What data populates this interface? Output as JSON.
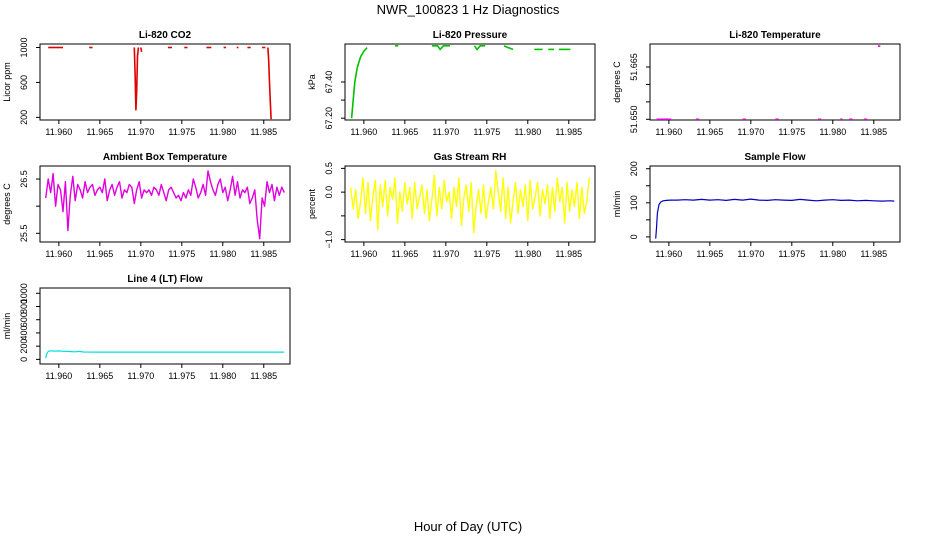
{
  "figure": {
    "title": "NWR_100823  1 Hz Diagnostics",
    "xlabel": "Hour of Day (UTC)"
  },
  "colors": {
    "co2": "#e00000",
    "pressure": "#00c000",
    "temperature": "#e000e0",
    "box_temp": "#e000e0",
    "rh": "#ffff00",
    "sample_flow": "#0000c0",
    "line4_flow": "#00e0e0"
  },
  "chart_data": [
    {
      "id": "co2",
      "type": "line",
      "title": "Li-820 CO2",
      "ylabel": "Licor ppm",
      "xlim": [
        11.9577,
        11.9882
      ],
      "ylim": [
        170,
        1040
      ],
      "xticks": [
        11.96,
        11.965,
        11.97,
        11.975,
        11.98,
        11.985
      ],
      "xtick_labels": [
        "11.960",
        "11.965",
        "11.970",
        "11.975",
        "11.980",
        "11.985"
      ],
      "yticks": [
        200,
        600,
        1000
      ],
      "ytick_labels": [
        "200",
        "600",
        "1000"
      ],
      "segments": [
        [
          [
            11.9587,
            1000
          ],
          [
            11.9605,
            1000
          ]
        ],
        [
          [
            11.9637,
            1000
          ],
          [
            11.9641,
            1000
          ]
        ],
        [
          [
            11.9692,
            1000
          ],
          [
            11.9693,
            700
          ],
          [
            11.9694,
            280
          ],
          [
            11.9695,
            500
          ],
          [
            11.9696,
            900
          ],
          [
            11.9697,
            1000
          ]
        ],
        [
          [
            11.97,
            1000
          ],
          [
            11.9701,
            950
          ]
        ],
        [
          [
            11.9733,
            1000
          ],
          [
            11.9738,
            1000
          ]
        ],
        [
          [
            11.9753,
            1000
          ],
          [
            11.9757,
            1000
          ]
        ],
        [
          [
            11.978,
            1000
          ],
          [
            11.9786,
            1000
          ]
        ],
        [
          [
            11.9801,
            1000
          ],
          [
            11.9804,
            1000
          ]
        ],
        [
          [
            11.9817,
            1000
          ],
          [
            11.9819,
            1000
          ]
        ],
        [
          [
            11.983,
            1000
          ],
          [
            11.9834,
            1000
          ]
        ],
        [
          [
            11.9848,
            1000
          ],
          [
            11.9852,
            1000
          ]
        ],
        [
          [
            11.9855,
            1000
          ],
          [
            11.9856,
            850
          ],
          [
            11.9857,
            600
          ],
          [
            11.9858,
            380
          ],
          [
            11.9859,
            180
          ]
        ]
      ]
    },
    {
      "id": "pressure",
      "type": "line",
      "title": "Li-820 Pressure",
      "ylabel": "kPa",
      "xlim": [
        11.9577,
        11.9882
      ],
      "ylim": [
        67.19,
        67.61
      ],
      "xticks": [
        11.96,
        11.965,
        11.97,
        11.975,
        11.98,
        11.985
      ],
      "xtick_labels": [
        "11.960",
        "11.965",
        "11.970",
        "11.975",
        "11.980",
        "11.985"
      ],
      "yticks": [
        67.2,
        67.3,
        67.4
      ],
      "ytick_labels": [
        "67.20",
        "",
        "67.40"
      ],
      "segments": [
        [
          [
            11.9585,
            67.2
          ],
          [
            11.9587,
            67.3
          ],
          [
            11.9589,
            67.4
          ],
          [
            11.9592,
            67.48
          ],
          [
            11.9596,
            67.54
          ],
          [
            11.96,
            67.57
          ],
          [
            11.9604,
            67.59
          ]
        ],
        [
          [
            11.9638,
            67.6
          ],
          [
            11.9642,
            67.6
          ]
        ],
        [
          [
            11.9683,
            67.6
          ],
          [
            11.969,
            67.6
          ],
          [
            11.9693,
            67.58
          ],
          [
            11.9697,
            67.6
          ],
          [
            11.9705,
            67.6
          ]
        ],
        [
          [
            11.9735,
            67.6
          ],
          [
            11.9738,
            67.58
          ],
          [
            11.9742,
            67.6
          ],
          [
            11.9748,
            67.6
          ]
        ],
        [
          [
            11.9771,
            67.6
          ],
          [
            11.9776,
            67.59
          ],
          [
            11.9782,
            67.58
          ]
        ],
        [
          [
            11.9808,
            67.58
          ],
          [
            11.9818,
            67.58
          ]
        ],
        [
          [
            11.9825,
            67.58
          ],
          [
            11.9832,
            67.58
          ]
        ],
        [
          [
            11.9838,
            67.58
          ],
          [
            11.9852,
            67.58
          ]
        ]
      ]
    },
    {
      "id": "temperature",
      "type": "line",
      "title": "Li-820 Temperature",
      "ylabel": "degrees C",
      "xlim": [
        11.9577,
        11.9882
      ],
      "ylim": [
        51.6498,
        51.6716
      ],
      "xticks": [
        11.96,
        11.965,
        11.97,
        11.975,
        11.98,
        11.985
      ],
      "xtick_labels": [
        "11.960",
        "11.965",
        "11.970",
        "11.975",
        "11.980",
        "11.985"
      ],
      "yticks": [
        51.65,
        51.655,
        51.66,
        51.665
      ],
      "ytick_labels": [
        "51.650",
        "",
        "",
        "51.665"
      ],
      "segments": [
        [
          [
            11.9585,
            51.65
          ],
          [
            11.9603,
            51.65
          ]
        ],
        [
          [
            11.9633,
            51.65
          ],
          [
            11.9637,
            51.65
          ]
        ],
        [
          [
            11.969,
            51.65
          ],
          [
            11.9694,
            51.65
          ]
        ],
        [
          [
            11.973,
            51.65
          ],
          [
            11.9734,
            51.65
          ]
        ],
        [
          [
            11.9782,
            51.65
          ],
          [
            11.9786,
            51.65
          ]
        ],
        [
          [
            11.9809,
            51.65
          ],
          [
            11.9812,
            51.65
          ]
        ],
        [
          [
            11.982,
            51.65
          ],
          [
            11.9824,
            51.65
          ]
        ],
        [
          [
            11.9838,
            51.65
          ],
          [
            11.9842,
            51.65
          ]
        ],
        [
          [
            11.9855,
            51.671
          ],
          [
            11.9858,
            51.671
          ]
        ]
      ]
    },
    {
      "id": "box_temp",
      "type": "line",
      "title": "Ambient Box Temperature",
      "ylabel": "degrees C",
      "xlim": [
        11.9577,
        11.9882
      ],
      "ylim": [
        25.34,
        26.74
      ],
      "xticks": [
        11.96,
        11.965,
        11.97,
        11.975,
        11.98,
        11.985
      ],
      "xtick_labels": [
        "11.960",
        "11.965",
        "11.970",
        "11.975",
        "11.980",
        "11.985"
      ],
      "yticks": [
        25.5,
        26.0,
        26.5
      ],
      "ytick_labels": [
        "25.5",
        "",
        "26.5"
      ],
      "x": [
        11.9584,
        11.9587,
        11.959,
        11.9593,
        11.9596,
        11.9599,
        11.9602,
        11.9605,
        11.9608,
        11.9611,
        11.9614,
        11.9617,
        11.962,
        11.9623,
        11.9626,
        11.9629,
        11.9632,
        11.9635,
        11.9638,
        11.9641,
        11.9644,
        11.9647,
        11.965,
        11.9653,
        11.9656,
        11.9659,
        11.9662,
        11.9665,
        11.9668,
        11.9671,
        11.9674,
        11.9677,
        11.968,
        11.9683,
        11.9686,
        11.9689,
        11.9692,
        11.9695,
        11.9698,
        11.9701,
        11.9704,
        11.9707,
        11.971,
        11.9713,
        11.9716,
        11.9719,
        11.9722,
        11.9725,
        11.9728,
        11.9731,
        11.9734,
        11.9737,
        11.974,
        11.9743,
        11.9746,
        11.9749,
        11.9752,
        11.9755,
        11.9758,
        11.9761,
        11.9764,
        11.9767,
        11.977,
        11.9773,
        11.9776,
        11.9779,
        11.9782,
        11.9785,
        11.9788,
        11.9791,
        11.9794,
        11.9797,
        11.98,
        11.9803,
        11.9806,
        11.9809,
        11.9812,
        11.9815,
        11.9818,
        11.9821,
        11.9824,
        11.9827,
        11.983,
        11.9833,
        11.9836,
        11.9839,
        11.9842,
        11.9845,
        11.9848,
        11.9851,
        11.9854,
        11.9857,
        11.986,
        11.9863,
        11.9866,
        11.9869,
        11.9872,
        11.9875
      ],
      "values": [
        26.15,
        26.5,
        26.25,
        26.6,
        26.0,
        26.4,
        26.3,
        25.9,
        26.45,
        25.55,
        26.2,
        26.55,
        26.1,
        26.4,
        26.3,
        26.15,
        26.45,
        26.25,
        26.35,
        26.4,
        26.2,
        26.3,
        26.35,
        26.25,
        26.5,
        26.1,
        26.3,
        26.4,
        26.2,
        26.35,
        26.45,
        26.15,
        26.3,
        26.25,
        26.4,
        26.35,
        26.05,
        26.3,
        26.45,
        26.15,
        26.3,
        26.25,
        26.3,
        26.2,
        26.35,
        26.3,
        26.2,
        26.4,
        26.25,
        26.1,
        26.3,
        26.35,
        26.25,
        26.15,
        26.2,
        26.1,
        26.25,
        26.15,
        26.3,
        26.2,
        26.5,
        26.35,
        26.15,
        26.25,
        26.4,
        26.2,
        26.65,
        26.45,
        26.3,
        26.2,
        26.4,
        26.5,
        26.25,
        26.35,
        26.1,
        26.3,
        26.55,
        26.2,
        26.45,
        26.15,
        26.3,
        26.25,
        26.35,
        26.05,
        26.15,
        26.3,
        25.75,
        25.4,
        26.15,
        26.0,
        26.45,
        26.25,
        26.4,
        26.1,
        26.35,
        26.2,
        26.35,
        26.25
      ]
    },
    {
      "id": "rh",
      "type": "line",
      "title": "Gas Stream RH",
      "ylabel": "percent",
      "xlim": [
        11.9577,
        11.9882
      ],
      "ylim": [
        -1.05,
        0.55
      ],
      "xticks": [
        11.96,
        11.965,
        11.97,
        11.975,
        11.98,
        11.985
      ],
      "xtick_labels": [
        "11.960",
        "11.965",
        "11.970",
        "11.975",
        "11.980",
        "11.985"
      ],
      "yticks": [
        -1.0,
        -0.5,
        0.0,
        0.5
      ],
      "ytick_labels": [
        "−1.0",
        "",
        "0.0",
        "0.5"
      ],
      "x": [
        11.9584,
        11.9587,
        11.959,
        11.9593,
        11.9596,
        11.9599,
        11.9602,
        11.9605,
        11.9608,
        11.9611,
        11.9614,
        11.9617,
        11.962,
        11.9623,
        11.9626,
        11.9629,
        11.9632,
        11.9635,
        11.9638,
        11.9641,
        11.9644,
        11.9647,
        11.965,
        11.9653,
        11.9656,
        11.9659,
        11.9662,
        11.9665,
        11.9668,
        11.9671,
        11.9674,
        11.9677,
        11.968,
        11.9683,
        11.9686,
        11.9689,
        11.9692,
        11.9695,
        11.9698,
        11.9701,
        11.9704,
        11.9707,
        11.971,
        11.9713,
        11.9716,
        11.9719,
        11.9722,
        11.9725,
        11.9728,
        11.9731,
        11.9734,
        11.9737,
        11.974,
        11.9743,
        11.9746,
        11.9749,
        11.9752,
        11.9755,
        11.9758,
        11.9761,
        11.9764,
        11.9767,
        11.977,
        11.9773,
        11.9776,
        11.9779,
        11.9782,
        11.9785,
        11.9788,
        11.9791,
        11.9794,
        11.9797,
        11.98,
        11.9803,
        11.9806,
        11.9809,
        11.9812,
        11.9815,
        11.9818,
        11.9821,
        11.9824,
        11.9827,
        11.983,
        11.9833,
        11.9836,
        11.9839,
        11.9842,
        11.9845,
        11.9848,
        11.9851,
        11.9854,
        11.9857,
        11.986,
        11.9863,
        11.9866,
        11.9869,
        11.9872,
        11.9875
      ],
      "values": [
        0.1,
        -0.35,
        0.05,
        -0.55,
        -0.2,
        0.3,
        -0.45,
        0.2,
        -0.6,
        -0.1,
        0.25,
        -0.8,
        0.15,
        -0.3,
        0.25,
        -0.5,
        0.1,
        -0.15,
        0.3,
        -0.65,
        0.0,
        -0.4,
        0.2,
        -0.25,
        0.1,
        -0.55,
        0.2,
        -0.35,
        -0.1,
        0.15,
        -0.45,
        0.05,
        -0.6,
        -0.15,
        0.35,
        -0.5,
        0.1,
        -0.35,
        0.25,
        -0.2,
        0.0,
        -0.55,
        0.1,
        -0.3,
        0.3,
        -0.7,
        -0.1,
        0.15,
        -0.4,
        0.2,
        -0.85,
        -0.3,
        0.05,
        -0.45,
        0.15,
        -0.55,
        -0.2,
        0.1,
        -0.35,
        0.45,
        0.0,
        -0.4,
        0.3,
        -0.55,
        0.1,
        -0.65,
        -0.2,
        0.2,
        -0.45,
        0.05,
        -0.3,
        0.15,
        -0.6,
        0.25,
        -0.35,
        -0.1,
        0.2,
        -0.5,
        0.05,
        -0.25,
        0.15,
        -0.55,
        0.1,
        -0.4,
        0.3,
        -0.2,
        0.1,
        -0.65,
        0.2,
        -0.4,
        0.05,
        -0.3,
        0.2,
        -0.55,
        0.1,
        -0.45,
        -0.2,
        0.3
      ]
    },
    {
      "id": "sample_flow",
      "type": "line",
      "title": "Sample Flow",
      "ylabel": "ml/min",
      "xlim": [
        11.9577,
        11.9882
      ],
      "ylim": [
        -15,
        208
      ],
      "xticks": [
        11.96,
        11.965,
        11.97,
        11.975,
        11.98,
        11.985
      ],
      "xtick_labels": [
        "11.960",
        "11.965",
        "11.970",
        "11.975",
        "11.980",
        "11.985"
      ],
      "yticks": [
        0,
        50,
        100,
        150,
        200
      ],
      "ytick_labels": [
        "0",
        "",
        "100",
        "",
        "200"
      ],
      "x": [
        11.9584,
        11.9585,
        11.9586,
        11.9588,
        11.959,
        11.9593,
        11.9597,
        11.9602,
        11.961,
        11.962,
        11.963,
        11.964,
        11.965,
        11.966,
        11.967,
        11.968,
        11.969,
        11.97,
        11.971,
        11.972,
        11.973,
        11.974,
        11.975,
        11.976,
        11.977,
        11.978,
        11.979,
        11.98,
        11.981,
        11.982,
        11.983,
        11.984,
        11.985,
        11.986,
        11.987,
        11.9875
      ],
      "values": [
        -5,
        30,
        70,
        95,
        102,
        106,
        107,
        108,
        108,
        109,
        108,
        110,
        108,
        109,
        107,
        110,
        108,
        111,
        108,
        107,
        109,
        108,
        107,
        110,
        108,
        106,
        108,
        109,
        107,
        108,
        106,
        107,
        106,
        105,
        106,
        105
      ]
    },
    {
      "id": "line4_flow",
      "type": "line",
      "title": "Line 4 (LT) Flow",
      "ylabel": "ml/min",
      "xlim": [
        11.9577,
        11.9882
      ],
      "ylim": [
        -70,
        1080
      ],
      "xticks": [
        11.96,
        11.965,
        11.97,
        11.975,
        11.98,
        11.985
      ],
      "xtick_labels": [
        "11.960",
        "11.965",
        "11.970",
        "11.975",
        "11.980",
        "11.985"
      ],
      "yticks": [
        0,
        200,
        400,
        600,
        800,
        1000
      ],
      "ytick_labels": [
        "0",
        "200",
        "400",
        "600",
        "800",
        "1000"
      ],
      "x": [
        11.9584,
        11.9585,
        11.9587,
        11.959,
        11.9595,
        11.96,
        11.9605,
        11.961,
        11.9615,
        11.962,
        11.9625,
        11.963,
        11.965,
        11.97,
        11.975,
        11.98,
        11.985,
        11.9875
      ],
      "values": [
        20,
        80,
        120,
        130,
        125,
        128,
        122,
        120,
        118,
        115,
        120,
        112,
        110,
        110,
        110,
        110,
        110,
        110
      ]
    }
  ]
}
